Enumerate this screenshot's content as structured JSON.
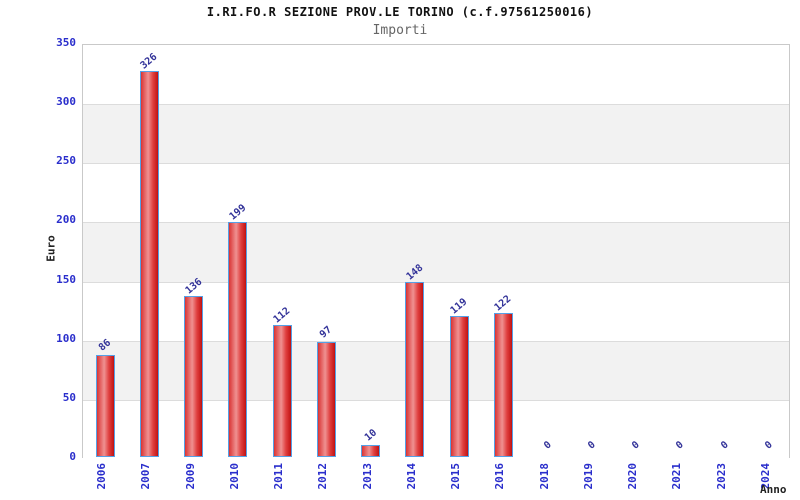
{
  "header": {
    "title": "I.RI.FO.R SEZIONE PROV.LE TORINO (c.f.97561250016)",
    "subtitle": "Importi"
  },
  "chart_data": {
    "type": "bar",
    "title": "I.RI.FO.R SEZIONE PROV.LE TORINO (c.f.97561250016)",
    "subtitle": "Importi",
    "xlabel": "Anno",
    "ylabel": "Euro",
    "categories": [
      "2006",
      "2007",
      "2009",
      "2010",
      "2011",
      "2012",
      "2013",
      "2014",
      "2015",
      "2016",
      "2018",
      "2019",
      "2020",
      "2021",
      "2023",
      "2024"
    ],
    "values": [
      86,
      326,
      136,
      199,
      112,
      97,
      10,
      148,
      119,
      122,
      0,
      0,
      0,
      0,
      0,
      0
    ],
    "ylim": [
      0,
      350
    ],
    "yticks": [
      0,
      50,
      100,
      150,
      200,
      250,
      300,
      350
    ],
    "grid": "horizontal alternating bands, gridline every 50",
    "legend": "none",
    "colors": {
      "bar_fill": "#e03434",
      "bar_fill_highlight": "#ef9191",
      "bar_border": "#55a0e6",
      "tick_label": "#2a2ecc",
      "value_label": "#333399",
      "band_gray": "#f2f2f2",
      "plot_border": "#c9c9c9",
      "title": "#111111",
      "subtitle": "#666666"
    }
  }
}
